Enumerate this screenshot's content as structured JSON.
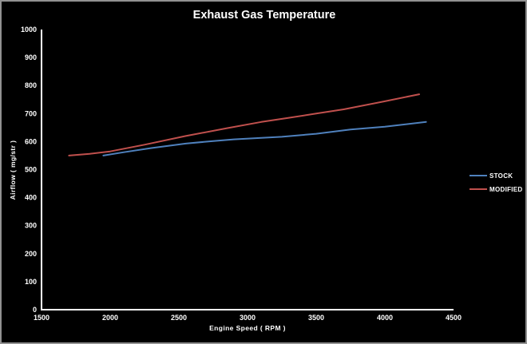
{
  "chart_data": {
    "type": "line",
    "title": "Exhaust Gas Temperature",
    "xlabel": "Engine Speed ( RPM )",
    "ylabel": "Airflow ( mg/str )",
    "xlim": [
      1500,
      4500
    ],
    "ylim": [
      0,
      1000
    ],
    "x_ticks": [
      1500,
      2000,
      2500,
      3000,
      3500,
      4000,
      4500
    ],
    "y_ticks": [
      0,
      100,
      200,
      300,
      400,
      500,
      600,
      700,
      800,
      900,
      1000
    ],
    "grid": false,
    "legend_position": "right",
    "colors": {
      "background": "#000000",
      "axis": "#ffffff",
      "text": "#ffffff",
      "frame_border": "#919191"
    },
    "series": [
      {
        "name": "STOCK",
        "color": "#4f81bd",
        "points": [
          [
            1950,
            550
          ],
          [
            2100,
            562
          ],
          [
            2300,
            577
          ],
          [
            2550,
            593
          ],
          [
            2750,
            602
          ],
          [
            2900,
            608
          ],
          [
            3100,
            613
          ],
          [
            3250,
            617
          ],
          [
            3500,
            628
          ],
          [
            3750,
            643
          ],
          [
            4000,
            653
          ],
          [
            4300,
            670
          ]
        ]
      },
      {
        "name": "MODIFIED",
        "color": "#c0504d",
        "points": [
          [
            1700,
            550
          ],
          [
            1850,
            556
          ],
          [
            2000,
            565
          ],
          [
            2250,
            589
          ],
          [
            2550,
            620
          ],
          [
            2850,
            648
          ],
          [
            3100,
            670
          ],
          [
            3300,
            685
          ],
          [
            3500,
            700
          ],
          [
            3700,
            715
          ],
          [
            4000,
            744
          ],
          [
            4250,
            769
          ]
        ]
      }
    ]
  }
}
